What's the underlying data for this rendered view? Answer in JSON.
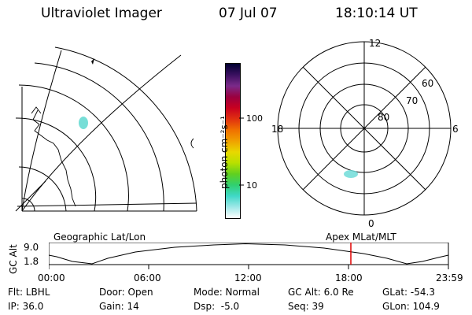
{
  "header": {
    "title": "Ultraviolet Imager",
    "date": "07 Jul 07",
    "time": "18:10:14 UT"
  },
  "colorbar": {
    "unit_label": "photon cm⁻²s⁻¹",
    "ticks": [
      "100",
      "10"
    ],
    "colors": [
      "#000030",
      "#3a1060",
      "#7a2a8a",
      "#9a0040",
      "#c80020",
      "#e03010",
      "#f07000",
      "#f0a000",
      "#e8d800",
      "#b8e000",
      "#60d020",
      "#30d070",
      "#40d8c8",
      "#a0e8e8",
      "#ffffff"
    ]
  },
  "polar_plot": {
    "mlt_labels": [
      "12",
      "18",
      "6",
      "0"
    ],
    "lat_labels": [
      "60",
      "70",
      "80"
    ]
  },
  "left_map": {
    "caption": "Geographic Lat/Lon"
  },
  "timeline": {
    "right_caption": "Apex MLat/MLT",
    "axis_title": "GC Alt",
    "y_ticks": [
      "9.0",
      "1.8"
    ],
    "x_ticks": [
      "00:00",
      "06:00",
      "12:00",
      "18:00",
      "23:59"
    ],
    "marker_color": "#e00000"
  },
  "info": {
    "row1": {
      "filter": "Flt: LBHL",
      "door": "Door: Open",
      "mode": "Mode: Normal",
      "gc_alt": "GC Alt: 6.0 Re",
      "glat": "GLat: -54.3"
    },
    "row2": {
      "ip": "IP: 36.0",
      "gain": "Gain: 14",
      "dsp": "Dsp:  -5.0",
      "seq": "Seq: 39",
      "glon": "GLon: 104.9"
    }
  }
}
